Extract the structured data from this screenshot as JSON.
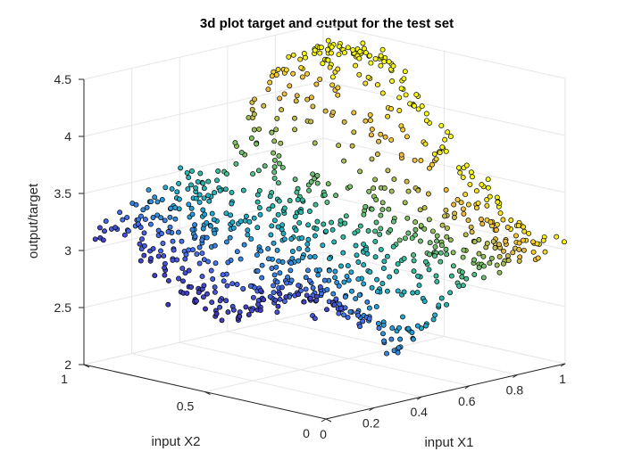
{
  "chart_data": {
    "type": "scatter",
    "title": "3d plot target and output for the test set",
    "xlabel": "input X1",
    "ylabel": "input X2",
    "zlabel": "output/target",
    "xlim": [
      0,
      1
    ],
    "ylim": [
      0,
      1
    ],
    "zlim": [
      2,
      4.5
    ],
    "xticks": [
      0,
      0.2,
      0.4,
      0.6,
      0.8,
      1
    ],
    "xtick_labels": [
      "0",
      "0.2",
      "0.4",
      "0.6",
      "0.8",
      "1"
    ],
    "yticks": [
      0,
      0.5,
      1
    ],
    "ytick_labels": [
      "0",
      "0.5",
      "1"
    ],
    "zticks": [
      2,
      2.5,
      3,
      3.5,
      4,
      4.5
    ],
    "ztick_labels": [
      "2",
      "2.5",
      "3",
      "3.5",
      "4",
      "4.5"
    ],
    "grid": true,
    "colormap": "parula (color by x1)",
    "marker_edge_color": "#000000",
    "point_count": 1000,
    "random_seed": 12345
  }
}
